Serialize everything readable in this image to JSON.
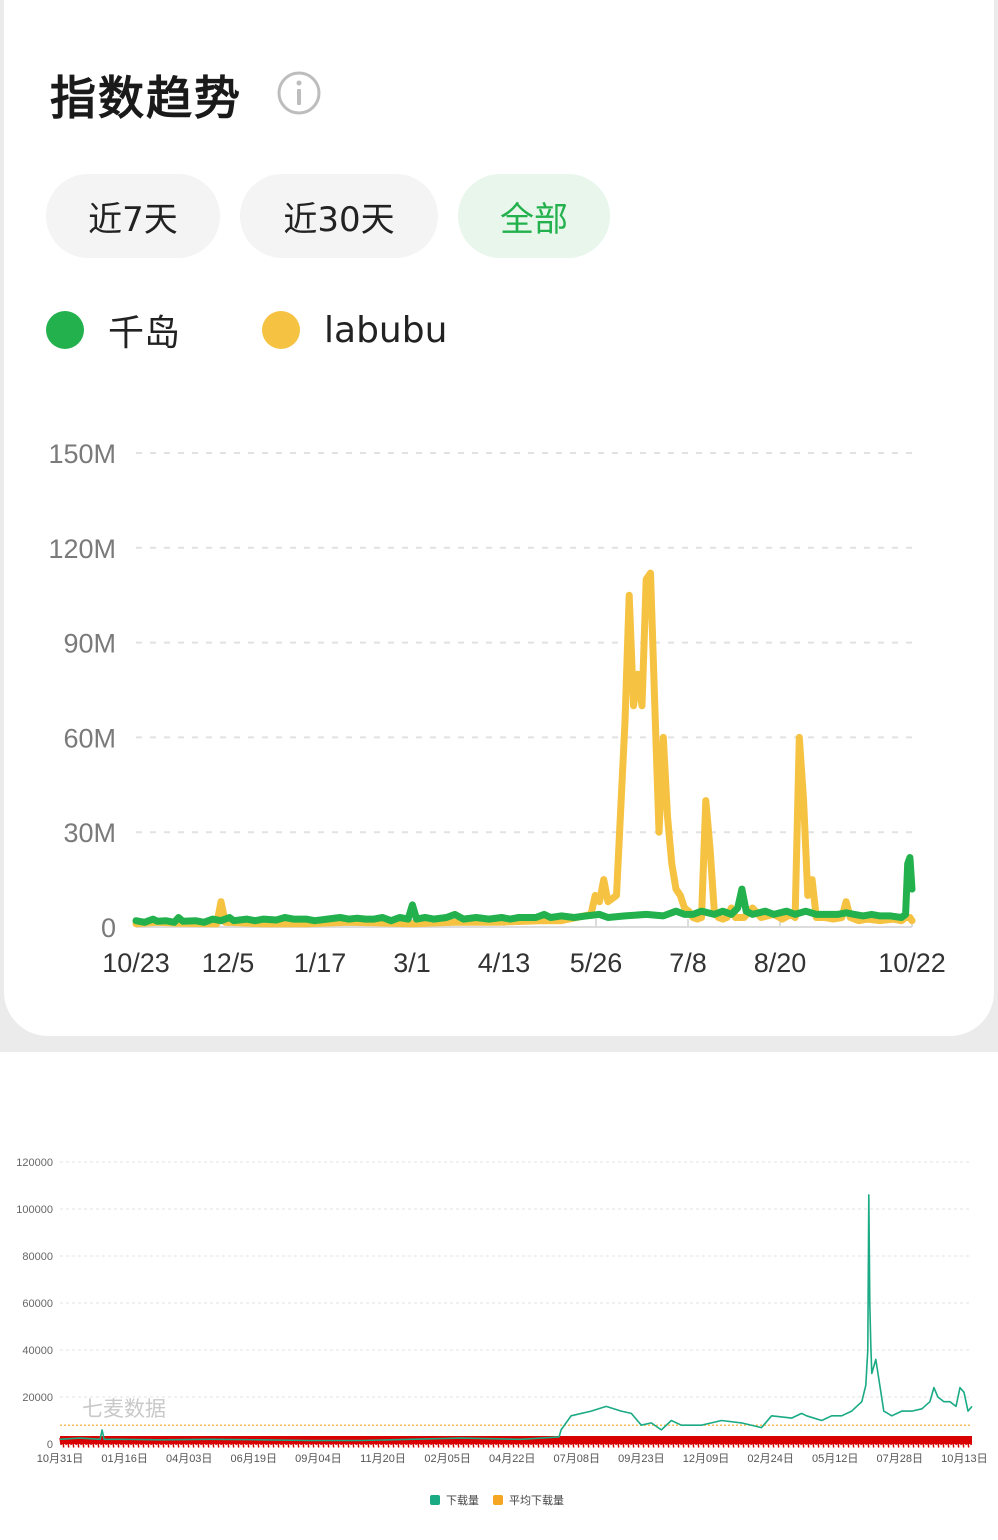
{
  "header": {
    "title": "指数趋势"
  },
  "tabs": [
    {
      "label": "近7天",
      "active": false
    },
    {
      "label": "近30天",
      "active": false
    },
    {
      "label": "全部",
      "active": true
    }
  ],
  "legend": [
    {
      "label": "千岛",
      "color": "#22b14c"
    },
    {
      "label": "labubu",
      "color": "#f5c242"
    }
  ],
  "chart_data": [
    {
      "type": "line",
      "y_ticks": [
        "150M",
        "120M",
        "90M",
        "60M",
        "30M",
        "0"
      ],
      "ylim": [
        0,
        150
      ],
      "x_ticks": [
        "10/23",
        "12/5",
        "1/17",
        "3/1",
        "4/13",
        "5/26",
        "7/8",
        "8/20",
        "10/22"
      ],
      "grid": true,
      "legend_position": "top-left",
      "series": [
        {
          "name": "千岛",
          "color": "#22b14c",
          "points": [
            [
              0,
              2
            ],
            [
              4,
              1.5
            ],
            [
              8,
              2.5
            ],
            [
              10,
              1.8
            ],
            [
              14,
              2
            ],
            [
              18,
              1.5
            ],
            [
              20,
              3
            ],
            [
              22,
              1.8
            ],
            [
              28,
              2
            ],
            [
              32,
              1.5
            ],
            [
              36,
              2.5
            ],
            [
              40,
              2
            ],
            [
              44,
              3
            ],
            [
              46,
              2
            ],
            [
              52,
              2.5
            ],
            [
              56,
              2
            ],
            [
              60,
              2.5
            ],
            [
              66,
              2.2
            ],
            [
              70,
              3
            ],
            [
              74,
              2.5
            ],
            [
              80,
              2.5
            ],
            [
              84,
              2
            ],
            [
              90,
              2.5
            ],
            [
              96,
              3
            ],
            [
              100,
              2.5
            ],
            [
              104,
              2.8
            ],
            [
              108,
              2.5
            ],
            [
              112,
              2.5
            ],
            [
              116,
              3
            ],
            [
              120,
              2
            ],
            [
              124,
              3
            ],
            [
              128,
              2.5
            ],
            [
              130,
              7
            ],
            [
              132,
              2.5
            ],
            [
              136,
              3
            ],
            [
              140,
              2.5
            ],
            [
              146,
              3
            ],
            [
              150,
              4
            ],
            [
              154,
              2.5
            ],
            [
              160,
              3
            ],
            [
              166,
              2.5
            ],
            [
              172,
              3
            ],
            [
              176,
              2.5
            ],
            [
              180,
              3
            ],
            [
              184,
              3
            ],
            [
              188,
              3
            ],
            [
              192,
              4
            ],
            [
              195,
              3
            ],
            [
              200,
              3.5
            ],
            [
              206,
              3
            ],
            [
              212,
              3.5
            ],
            [
              218,
              4
            ],
            [
              222,
              3
            ],
            [
              230,
              3.5
            ],
            [
              240,
              4
            ],
            [
              248,
              3.5
            ],
            [
              254,
              5
            ],
            [
              258,
              4
            ],
            [
              262,
              4
            ],
            [
              266,
              5
            ],
            [
              272,
              4
            ],
            [
              276,
              5
            ],
            [
              280,
              4
            ],
            [
              283,
              6
            ],
            [
              285,
              12
            ],
            [
              287,
              5
            ],
            [
              290,
              4
            ],
            [
              296,
              5
            ],
            [
              300,
              4
            ],
            [
              306,
              5
            ],
            [
              310,
              4
            ],
            [
              315,
              5
            ],
            [
              320,
              4
            ],
            [
              325,
              4
            ],
            [
              330,
              4
            ],
            [
              334,
              4.5
            ],
            [
              338,
              4
            ],
            [
              342,
              3.5
            ],
            [
              346,
              4
            ],
            [
              350,
              3.5
            ],
            [
              355,
              3.5
            ],
            [
              360,
              3
            ],
            [
              362,
              4
            ],
            [
              363,
              20
            ],
            [
              364,
              22
            ],
            [
              365,
              12
            ]
          ]
        },
        {
          "name": "labubu",
          "color": "#f5c242",
          "points": [
            [
              0,
              1
            ],
            [
              10,
              1.5
            ],
            [
              20,
              1.2
            ],
            [
              38,
              1
            ],
            [
              40,
              8
            ],
            [
              42,
              1.5
            ],
            [
              60,
              1
            ],
            [
              80,
              1
            ],
            [
              100,
              1.5
            ],
            [
              120,
              1.2
            ],
            [
              130,
              1
            ],
            [
              150,
              1.5
            ],
            [
              170,
              1.5
            ],
            [
              190,
              2
            ],
            [
              200,
              2
            ],
            [
              214,
              4
            ],
            [
              216,
              10
            ],
            [
              218,
              8
            ],
            [
              220,
              15
            ],
            [
              222,
              8
            ],
            [
              226,
              10
            ],
            [
              230,
              65
            ],
            [
              232,
              105
            ],
            [
              234,
              70
            ],
            [
              236,
              80
            ],
            [
              238,
              70
            ],
            [
              240,
              110
            ],
            [
              242,
              112
            ],
            [
              244,
              70
            ],
            [
              246,
              30
            ],
            [
              248,
              60
            ],
            [
              250,
              35
            ],
            [
              252,
              20
            ],
            [
              254,
              12
            ],
            [
              256,
              10
            ],
            [
              258,
              6
            ],
            [
              260,
              5
            ],
            [
              262,
              3
            ],
            [
              264,
              2.5
            ],
            [
              266,
              3
            ],
            [
              268,
              40
            ],
            [
              270,
              25
            ],
            [
              272,
              5
            ],
            [
              274,
              3
            ],
            [
              276,
              2.5
            ],
            [
              278,
              3
            ],
            [
              280,
              6
            ],
            [
              282,
              3
            ],
            [
              286,
              3
            ],
            [
              290,
              6
            ],
            [
              294,
              3
            ],
            [
              300,
              4
            ],
            [
              304,
              2.5
            ],
            [
              308,
              4
            ],
            [
              310,
              3
            ],
            [
              312,
              60
            ],
            [
              314,
              40
            ],
            [
              316,
              10
            ],
            [
              318,
              15
            ],
            [
              320,
              3
            ],
            [
              324,
              3
            ],
            [
              328,
              2.5
            ],
            [
              332,
              3
            ],
            [
              334,
              8
            ],
            [
              336,
              3
            ],
            [
              340,
              2
            ],
            [
              344,
              2.5
            ],
            [
              350,
              2
            ],
            [
              356,
              2.5
            ],
            [
              360,
              2
            ],
            [
              362,
              3
            ],
            [
              364,
              3
            ],
            [
              365,
              2
            ]
          ]
        }
      ]
    },
    {
      "type": "line",
      "y_ticks": [
        "120000",
        "100000",
        "80000",
        "60000",
        "40000",
        "20000",
        "0"
      ],
      "ylim": [
        0,
        120000
      ],
      "x_ticks": [
        "10月31日",
        "01月16日",
        "04月03日",
        "06月19日",
        "09月04日",
        "11月20日",
        "02月05日",
        "04月22日",
        "07月08日",
        "09月23日",
        "12月09日",
        "02月24日",
        "05月12日",
        "07月28日",
        "10月13日"
      ],
      "watermark": "七麦数据",
      "grid": true,
      "legend_position": "bottom-center",
      "series": [
        {
          "name": "下载量",
          "color": "#1aaa84",
          "points": [
            [
              0,
              2000
            ],
            [
              20,
              2500
            ],
            [
              40,
              2000
            ],
            [
              42,
              6000
            ],
            [
              44,
              2000
            ],
            [
              60,
              2000
            ],
            [
              100,
              1800
            ],
            [
              150,
              2000
            ],
            [
              200,
              1800
            ],
            [
              250,
              1500
            ],
            [
              300,
              1500
            ],
            [
              350,
              2000
            ],
            [
              400,
              2500
            ],
            [
              460,
              2000
            ],
            [
              480,
              2500
            ],
            [
              498,
              3000
            ],
            [
              500,
              6000
            ],
            [
              510,
              12000
            ],
            [
              530,
              14000
            ],
            [
              545,
              16000
            ],
            [
              560,
              14000
            ],
            [
              570,
              13000
            ],
            [
              580,
              8000
            ],
            [
              590,
              9000
            ],
            [
              600,
              6000
            ],
            [
              610,
              10000
            ],
            [
              620,
              8000
            ],
            [
              640,
              8000
            ],
            [
              650,
              9000
            ],
            [
              660,
              10000
            ],
            [
              680,
              9000
            ],
            [
              700,
              7000
            ],
            [
              710,
              12000
            ],
            [
              730,
              11000
            ],
            [
              740,
              13000
            ],
            [
              745,
              12000
            ],
            [
              760,
              10000
            ],
            [
              770,
              12000
            ],
            [
              780,
              12000
            ],
            [
              790,
              14000
            ],
            [
              800,
              18000
            ],
            [
              804,
              25000
            ],
            [
              806,
              40000
            ],
            [
              807,
              106000
            ],
            [
              808,
              60000
            ],
            [
              809,
              42000
            ],
            [
              810,
              30000
            ],
            [
              814,
              36000
            ],
            [
              818,
              25000
            ],
            [
              822,
              14000
            ],
            [
              830,
              12000
            ],
            [
              840,
              14000
            ],
            [
              850,
              14000
            ],
            [
              860,
              15000
            ],
            [
              868,
              18000
            ],
            [
              872,
              24000
            ],
            [
              876,
              20000
            ],
            [
              882,
              18000
            ],
            [
              888,
              18000
            ],
            [
              894,
              16000
            ],
            [
              898,
              24000
            ],
            [
              902,
              22000
            ],
            [
              906,
              14000
            ],
            [
              910,
              16000
            ]
          ]
        },
        {
          "name": "平均下载量",
          "color": "#f5a623",
          "values": [
            8000
          ]
        }
      ]
    }
  ]
}
